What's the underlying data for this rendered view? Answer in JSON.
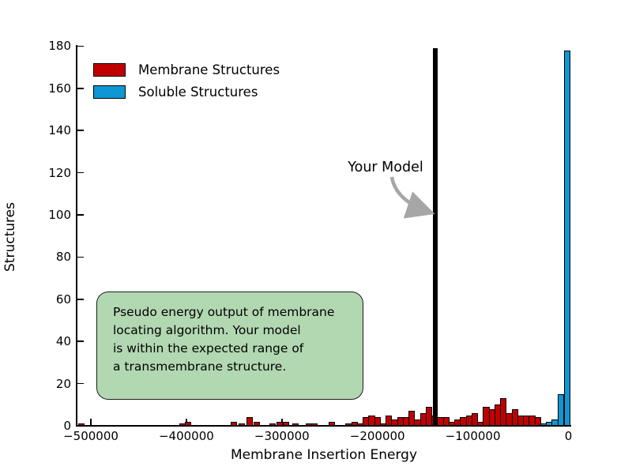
{
  "chart_data": {
    "type": "bar",
    "subtype": "histogram",
    "xlabel": "Membrane Insertion Energy",
    "ylabel": "Structures",
    "xlim": [
      -515000,
      2000
    ],
    "ylim": [
      0,
      180
    ],
    "grid": false,
    "x_ticks": [
      -500000,
      -400000,
      -300000,
      -200000,
      -100000,
      0
    ],
    "x_tick_labels": [
      "−500000",
      "−400000",
      "−300000",
      "−200000",
      "−100000",
      "0"
    ],
    "y_ticks": [
      0,
      20,
      40,
      60,
      80,
      100,
      120,
      140,
      160,
      180
    ],
    "y_tick_labels": [
      "0",
      "20",
      "40",
      "60",
      "80",
      "100",
      "120",
      "140",
      "160",
      "180"
    ],
    "bin_width": 6000,
    "series": [
      {
        "name": "Membrane Structures",
        "color": "#c00000",
        "bars": [
          [
            -510000,
            1
          ],
          [
            -404000,
            1
          ],
          [
            -398000,
            2
          ],
          [
            -350000,
            2
          ],
          [
            -342000,
            1
          ],
          [
            -334000,
            4
          ],
          [
            -326000,
            2
          ],
          [
            -310000,
            1
          ],
          [
            -302000,
            2
          ],
          [
            -296000,
            2
          ],
          [
            -286000,
            1
          ],
          [
            -272000,
            1
          ],
          [
            -266000,
            1
          ],
          [
            -248000,
            2
          ],
          [
            -230000,
            1
          ],
          [
            -224000,
            2
          ],
          [
            -218000,
            1
          ],
          [
            -212000,
            4
          ],
          [
            -206000,
            5
          ],
          [
            -200000,
            4
          ],
          [
            -194000,
            1
          ],
          [
            -188000,
            5
          ],
          [
            -182000,
            3
          ],
          [
            -176000,
            4
          ],
          [
            -170000,
            4
          ],
          [
            -164000,
            7
          ],
          [
            -158000,
            3
          ],
          [
            -152000,
            6
          ],
          [
            -146000,
            9
          ],
          [
            -140000,
            5
          ],
          [
            -134000,
            4
          ],
          [
            -128000,
            4
          ],
          [
            -122000,
            2
          ],
          [
            -116000,
            3
          ],
          [
            -110000,
            4
          ],
          [
            -104000,
            5
          ],
          [
            -98000,
            6
          ],
          [
            -92000,
            2
          ],
          [
            -86000,
            9
          ],
          [
            -80000,
            8
          ],
          [
            -74000,
            10
          ],
          [
            -68000,
            13
          ],
          [
            -62000,
            6
          ],
          [
            -56000,
            8
          ],
          [
            -50000,
            5
          ],
          [
            -44000,
            5
          ],
          [
            -38000,
            5
          ],
          [
            -32000,
            4
          ]
        ]
      },
      {
        "name": "Soluble Structures",
        "color": "#0e96d5",
        "bars": [
          [
            -26000,
            1
          ],
          [
            -20000,
            2
          ],
          [
            -14000,
            3
          ],
          [
            -8000,
            15
          ],
          [
            -1500,
            178
          ]
        ]
      }
    ],
    "model_line": {
      "x": -139000,
      "top_value": 179,
      "label": "Your Model",
      "color": "#000000"
    },
    "annotation": {
      "text": "Pseudo energy output of membrane\nlocating algorithm. Your model\nis within the expected range of\na transmembrane structure.",
      "fill_color": "#b2d8b2",
      "border_color": "#1c1c1c"
    },
    "legend_position": "upper left",
    "arrow_color": "#a6a6a6"
  },
  "legend": {
    "items": [
      {
        "label": "Membrane Structures",
        "color": "#c00000"
      },
      {
        "label": "Soluble Structures",
        "color": "#0e96d5"
      }
    ]
  },
  "axes": {
    "xlabel": "Membrane Insertion Energy",
    "ylabel": "Structures"
  }
}
